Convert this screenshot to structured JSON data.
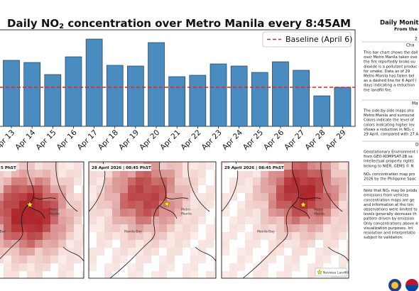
{
  "chart_data": {
    "type": "bar",
    "title": {
      "text": "Daily NO",
      "subscript": "2",
      "rest": " concentration over Metro Manila every 8:45AM"
    },
    "categories": [
      "Apr 13",
      "Apr 14",
      "Apr 15",
      "Apr 16",
      "Apr 17",
      "Apr 18",
      "Apr 19",
      "Apr 20",
      "Apr 21",
      "Apr 22",
      "Apr 23",
      "Apr 24",
      "Apr 25",
      "Apr 26",
      "Apr 27",
      "Apr 28",
      "Apr 29"
    ],
    "values": [
      93,
      90,
      73,
      98,
      123,
      86,
      85,
      118,
      70,
      72,
      88,
      85,
      76,
      91,
      79,
      43,
      55
    ],
    "color": "#4a8bc0",
    "ylim": [
      0,
      136
    ],
    "baseline": {
      "name": "Baseline (April 6)",
      "value": 55,
      "color": "#d62728"
    },
    "legend": "upper right"
  },
  "maps": {
    "panels": [
      {
        "label": "5 PhST",
        "metro": [
          "Metro",
          "Manila"
        ],
        "bay": "la Bay"
      },
      {
        "label": "28 April 2026 | 08:45 PhST",
        "metro": [
          "Metro",
          "Manila"
        ],
        "bay": "Manila Bay"
      },
      {
        "label": "29 April 2026 | 08:45 PhST",
        "metro": [
          "Metro",
          "Manila"
        ],
        "bay": "Manila Bay",
        "legend": "Navotas Landfill"
      }
    ]
  },
  "sidebar": {
    "title": "Daily Monito",
    "subtitle": "From the N",
    "date": "2",
    "sections": [
      {
        "heading": "Cha",
        "paragraphs": [
          [
            "This bar chart shows the dail",
            "over Metro Manila taken eve",
            "the fire reportedly broke ou",
            "dioxide is a pollutant produc",
            "for smoke. Data as of 29",
            "Metro Manila has fallen bel",
            "as a dashed line for 6 April l",
            "days indicating a reduction",
            "the landfill fire."
          ]
        ]
      },
      {
        "heading": "Ma",
        "paragraphs": [
          [
            "The side-by-side maps sho",
            "Metro Manila and surround",
            "Colors indicate the level of",
            "colors indicating higher lev",
            "shows a reduction in NO₂ c",
            "29 April, compared with 27 A"
          ]
        ]
      },
      {
        "heading": "D",
        "paragraphs": [
          [
            "Geostationary Environment I",
            "from GEO-KOMPSAT-2B sa",
            "Intellectual property rights",
            "belong to NIER. GEMS © N"
          ],
          [
            "NO₂ concentration map pro",
            "2026 by the Philippine Spac"
          ],
          [
            "Note that NO₂ may be produ",
            "emissions from vehicles",
            "concentration maps are ge",
            "and information at the tim",
            "observations were limited to",
            "levels generally decrease th",
            "pattern driven by emission",
            "Only concentrations above 4",
            "visualization purposes. Int",
            "resolution and interpretatio",
            "subject to validation."
          ]
        ]
      }
    ]
  }
}
